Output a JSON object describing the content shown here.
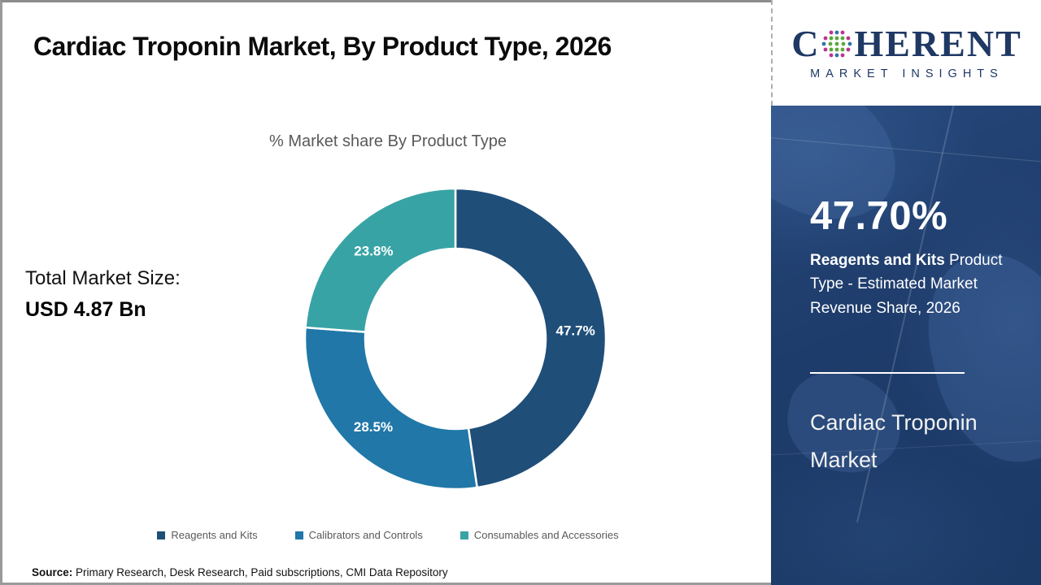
{
  "header": {
    "title": "Cardiac Troponin Market, By Product Type, 2026"
  },
  "logo": {
    "part1": "C",
    "part2": "HERENT",
    "subtitle": "MARKET INSIGHTS",
    "navy": "#1f3864"
  },
  "chart_data": {
    "type": "pie",
    "donut": true,
    "title": "% Market share By Product Type",
    "categories": [
      "Reagents and Kits",
      "Calibrators and Controls",
      "Consumables and Accessories"
    ],
    "values": [
      47.7,
      28.5,
      23.8
    ],
    "labels": [
      "47.7%",
      "28.5%",
      "23.8%"
    ],
    "colors": [
      "#1f4e79",
      "#2077a8",
      "#38a3a5"
    ],
    "start_angle_deg": 0,
    "direction": "clockwise",
    "legend_position": "bottom"
  },
  "left_panel": {
    "total_label": "Total Market Size:",
    "total_value": "USD 4.87 Bn"
  },
  "sidebar": {
    "stat_value": "47.70%",
    "stat_bold": "Reagents and Kits",
    "stat_rest": " Product Type - Estimated Market Revenue Share, 2026",
    "market_name": "Cardiac Troponin Market",
    "bg_color": "#1e3c6b"
  },
  "footer": {
    "source_label": "Source:",
    "source_text": " Primary Research, Desk Research, Paid subscriptions, CMI Data Repository"
  }
}
